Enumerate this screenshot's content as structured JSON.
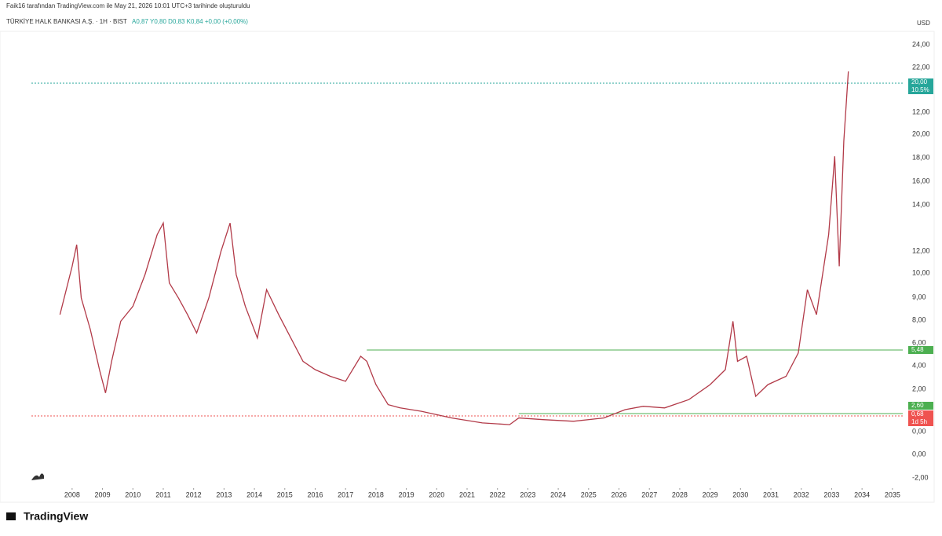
{
  "header": {
    "credit": "Faik16 tarafından TradingView.com ile May 21, 2026 10:01 UTC+3 tarihinde oluşturuldu",
    "symbol": "TÜRKİYE HALK BANKASI A.Ş. · 1H · BIST",
    "ohlc": "A0,87 Y0,80 D0,83 K0,84 +0,00 (+0,00%)"
  },
  "chart_data": {
    "type": "line",
    "currency": "USD",
    "x": [
      2007.6,
      2008.0,
      2008.15,
      2008.3,
      2008.6,
      2008.9,
      2009.1,
      2009.3,
      2009.6,
      2010.0,
      2010.4,
      2010.8,
      2011.0,
      2011.2,
      2011.5,
      2011.8,
      2012.1,
      2012.5,
      2012.9,
      2013.2,
      2013.4,
      2013.7,
      2014.1,
      2014.4,
      2014.8,
      2015.2,
      2015.6,
      2016.0,
      2016.5,
      2017.0,
      2017.5,
      2017.7,
      2018.0,
      2018.4,
      2018.8,
      2019.5,
      2020.5,
      2021.5,
      2022.4,
      2022.7,
      2023.5,
      2024.5,
      2025.5,
      2026.2,
      2026.8,
      2027.5,
      2028.3,
      2029.0,
      2029.5,
      2029.75,
      2029.9,
      2030.2,
      2030.5,
      2030.9,
      2031.5,
      2031.9,
      2032.2,
      2032.5,
      2032.9,
      2033.1,
      2033.25,
      2033.4,
      2033.55
    ],
    "series": [
      {
        "color": "#b23a48",
        "values": [
          7.8,
          10.7,
          12.0,
          8.8,
          6.9,
          4.5,
          3.1,
          5.0,
          7.4,
          8.3,
          10.2,
          12.6,
          13.3,
          9.7,
          8.8,
          7.8,
          6.7,
          8.8,
          11.6,
          13.3,
          10.2,
          8.3,
          6.4,
          9.3,
          7.8,
          6.4,
          5.0,
          4.5,
          4.1,
          3.8,
          5.3,
          5.0,
          3.6,
          2.4,
          2.2,
          2.0,
          1.6,
          1.3,
          1.2,
          1.6,
          1.5,
          1.4,
          1.6,
          2.1,
          2.3,
          2.2,
          2.7,
          3.6,
          4.5,
          7.4,
          5.0,
          5.3,
          2.9,
          3.6,
          4.1,
          5.5,
          9.3,
          7.8,
          12.6,
          17.3,
          10.7,
          18.2,
          22.4
        ]
      }
    ],
    "xlim": [
      2006.66,
      2035.34
    ],
    "xticks": [
      2008,
      2009,
      2010,
      2011,
      2012,
      2013,
      2014,
      2015,
      2016,
      2017,
      2018,
      2019,
      2020,
      2021,
      2022,
      2023,
      2024,
      2025,
      2026,
      2027,
      2028,
      2029,
      2030,
      2031,
      2032,
      2033,
      2034,
      2035
    ],
    "ylim": [
      -2,
      24
    ],
    "price_scale_labels": [
      "24,00",
      "22,00",
      "12,00",
      "20,00",
      "18,00",
      "16,00",
      "14,00",
      "12,00",
      "10,00",
      "9,00",
      "8,00",
      "6,00",
      "4,00",
      "2,00",
      "0,00",
      "0,00",
      "-2,00"
    ],
    "levels": [
      {
        "value": 5.68,
        "from": 2017.7,
        "color": "#4caf50",
        "style": "solid"
      },
      {
        "value": 1.86,
        "from": 2022.7,
        "color": "#4caf50",
        "style": "solid"
      },
      {
        "value": 1.72,
        "from": 2006.66,
        "color": "#ef5350",
        "style": "dotted"
      },
      {
        "value": 21.69,
        "from": 2006.66,
        "color": "#26a69a",
        "style": "dotted"
      }
    ],
    "price_tags": [
      {
        "text": "20,00",
        "color": "#26a69a"
      },
      {
        "text": "10.5%",
        "color": "#26a69a"
      },
      {
        "text": "5,48",
        "color": "#4caf50"
      },
      {
        "text": "2,60",
        "color": "#4caf50"
      },
      {
        "text": "0,68",
        "color": "#ef5350"
      },
      {
        "text": "1d 5h",
        "color": "#ef5350"
      }
    ]
  },
  "footer": {
    "brand": "TradingView"
  }
}
